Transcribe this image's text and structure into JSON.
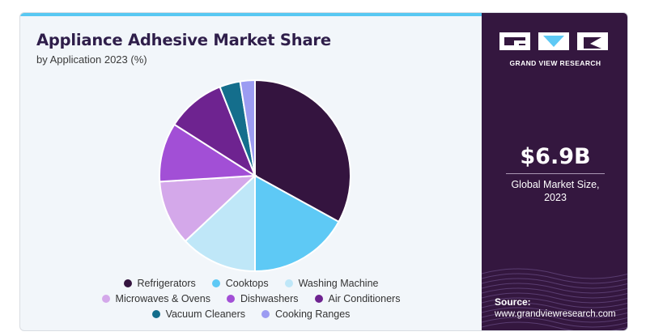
{
  "header": {
    "title": "Appliance Adhesive Market Share",
    "subtitle": "by Application 2023 (%)"
  },
  "brand": {
    "name": "GRAND VIEW RESEARCH",
    "logo_letters": "GVR"
  },
  "stat": {
    "value": "$6.9B",
    "label_line1": "Global Market Size,",
    "label_line2": "2023"
  },
  "source": {
    "label": "Source:",
    "url": "www.grandviewresearch.com"
  },
  "colors": {
    "accent_bar": "#58c8f2",
    "side_panel": "#34173f",
    "card_background": "#f2f6fa"
  },
  "chart_data": {
    "type": "pie",
    "title": "Appliance Adhesive Market Share",
    "subtitle": "by Application 2023 (%)",
    "unit": "%",
    "legend_position": "bottom",
    "start_angle_deg": 0,
    "direction": "clockwise",
    "labels": [
      "Refrigerators",
      "Cooktops",
      "Washing Machine",
      "Microwaves & Ovens",
      "Dishwashers",
      "Air Conditioners",
      "Vacuum Cleaners",
      "Cooking Ranges"
    ],
    "values": [
      33,
      17,
      13,
      11,
      10,
      10,
      3.5,
      2.5
    ],
    "colors": [
      "#34143f",
      "#5ec9f5",
      "#bfe7f8",
      "#d4a8ea",
      "#a24fd6",
      "#6e2390",
      "#146e8c",
      "#9c9cf2"
    ]
  }
}
